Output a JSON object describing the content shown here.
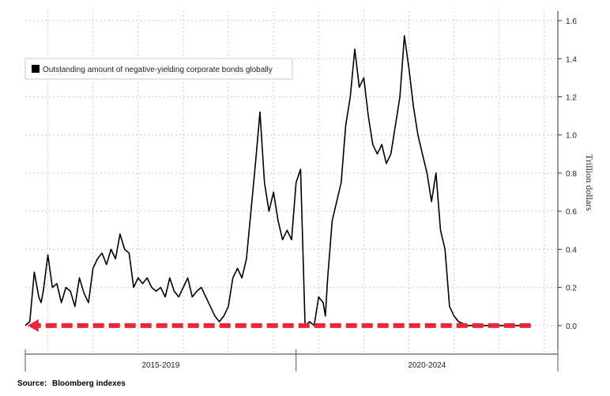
{
  "chart_data": {
    "type": "line",
    "ylabel": "Trillion dollars",
    "y_axis_side": "right",
    "ylim": [
      -0.15,
      1.65
    ],
    "yticks": [
      0.0,
      0.2,
      0.4,
      0.6,
      0.8,
      1.0,
      1.2,
      1.4,
      1.6
    ],
    "ytick_labels": [
      "0.0",
      "0.2",
      "0.4",
      "0.6",
      "0.8",
      "1.0",
      "1.2",
      "1.4",
      "1.6"
    ],
    "xlim": [
      2013.5,
      2025.3
    ],
    "x_period_labels": [
      {
        "label": "2015-2019",
        "start": 2013.5,
        "end": 2019.5
      },
      {
        "label": "2020-2024",
        "start": 2019.5,
        "end": 2025.3
      }
    ],
    "grid": true,
    "legend_position": "top-left",
    "colors": {
      "series": "#000000",
      "arrow": "#e8283a",
      "grid": "#c9c9c9"
    },
    "series": [
      {
        "name": "Outstanding amount of negative-yielding corporate bonds globally",
        "x": [
          2013.5,
          2013.6,
          2013.7,
          2013.8,
          2013.85,
          2013.9,
          2014.0,
          2014.1,
          2014.2,
          2014.3,
          2014.4,
          2014.5,
          2014.6,
          2014.7,
          2014.8,
          2014.9,
          2015.0,
          2015.1,
          2015.2,
          2015.3,
          2015.4,
          2015.5,
          2015.6,
          2015.7,
          2015.8,
          2015.9,
          2016.0,
          2016.1,
          2016.2,
          2016.3,
          2016.4,
          2016.5,
          2016.6,
          2016.7,
          2016.8,
          2016.9,
          2017.0,
          2017.1,
          2017.2,
          2017.3,
          2017.4,
          2017.5,
          2017.6,
          2017.7,
          2017.8,
          2017.9,
          2018.0,
          2018.1,
          2018.2,
          2018.3,
          2018.4,
          2018.5,
          2018.6,
          2018.7,
          2018.8,
          2018.9,
          2019.0,
          2019.1,
          2019.2,
          2019.3,
          2019.4,
          2019.5,
          2019.6,
          2019.7,
          2019.8,
          2019.9,
          2020.0,
          2020.1,
          2020.15,
          2020.2,
          2020.3,
          2020.4,
          2020.5,
          2020.6,
          2020.7,
          2020.8,
          2020.9,
          2021.0,
          2021.1,
          2021.2,
          2021.3,
          2021.4,
          2021.5,
          2021.6,
          2021.7,
          2021.8,
          2021.9,
          2022.0,
          2022.1,
          2022.2,
          2022.3,
          2022.4,
          2022.5,
          2022.6,
          2022.7,
          2022.8,
          2022.9,
          2023.0,
          2023.1,
          2023.2,
          2023.3,
          2023.4,
          2023.5,
          2023.6,
          2023.7,
          2023.8,
          2023.9,
          2024.0,
          2024.1,
          2024.2,
          2024.3,
          2024.4,
          2024.5,
          2024.6,
          2024.7
        ],
        "values": [
          0.0,
          0.02,
          0.28,
          0.15,
          0.12,
          0.18,
          0.37,
          0.2,
          0.22,
          0.12,
          0.2,
          0.18,
          0.1,
          0.25,
          0.17,
          0.12,
          0.3,
          0.35,
          0.38,
          0.32,
          0.4,
          0.35,
          0.48,
          0.4,
          0.38,
          0.2,
          0.25,
          0.22,
          0.25,
          0.2,
          0.18,
          0.2,
          0.15,
          0.25,
          0.18,
          0.15,
          0.2,
          0.25,
          0.15,
          0.18,
          0.2,
          0.15,
          0.1,
          0.05,
          0.02,
          0.05,
          0.1,
          0.25,
          0.3,
          0.25,
          0.35,
          0.6,
          0.85,
          1.12,
          0.75,
          0.6,
          0.7,
          0.55,
          0.45,
          0.5,
          0.45,
          0.75,
          0.82,
          0.0,
          0.02,
          0.0,
          0.15,
          0.12,
          0.05,
          0.25,
          0.55,
          0.65,
          0.75,
          1.05,
          1.2,
          1.45,
          1.25,
          1.3,
          1.1,
          0.95,
          0.9,
          0.95,
          0.85,
          0.9,
          1.05,
          1.2,
          1.52,
          1.35,
          1.15,
          1.0,
          0.9,
          0.8,
          0.65,
          0.8,
          0.5,
          0.4,
          0.1,
          0.05,
          0.02,
          0.01,
          0.0,
          0.0,
          0.0,
          0.0,
          0.0,
          0.0,
          0.0,
          0.0,
          0.0,
          0.0,
          0.0,
          0.0,
          0.0,
          0.0,
          0.0
        ]
      }
    ],
    "annotations": [
      {
        "type": "dashed-arrow",
        "direction": "left",
        "color": "#e8283a",
        "y": 0.0,
        "x_from": 2024.7,
        "x_to": 2013.55
      }
    ]
  },
  "legend": {
    "entries": [
      "Outstanding amount of negative-yielding corporate bonds globally"
    ]
  },
  "source": {
    "label": "Source:",
    "text": "Bloomberg indexes"
  }
}
